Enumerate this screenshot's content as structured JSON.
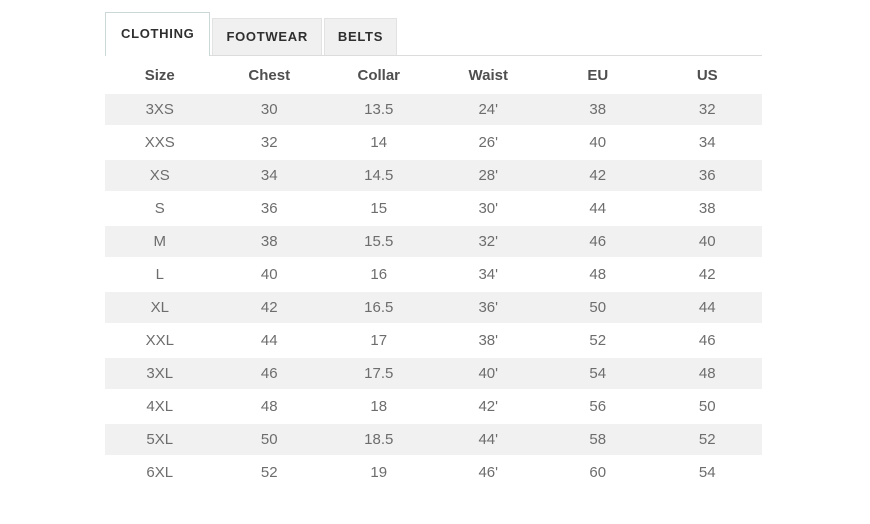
{
  "tabs": [
    {
      "label": "CLOTHING",
      "active": true
    },
    {
      "label": "FOOTWEAR",
      "active": false
    },
    {
      "label": "BELTS",
      "active": false
    }
  ],
  "table": {
    "columns": [
      "Size",
      "Chest",
      "Collar",
      "Waist",
      "EU",
      "US"
    ],
    "rows": [
      [
        "3XS",
        "30",
        "13.5",
        "24'",
        "38",
        "32"
      ],
      [
        "XXS",
        "32",
        "14",
        "26'",
        "40",
        "34"
      ],
      [
        "XS",
        "34",
        "14.5",
        "28'",
        "42",
        "36"
      ],
      [
        "S",
        "36",
        "15",
        "30'",
        "44",
        "38"
      ],
      [
        "M",
        "38",
        "15.5",
        "32'",
        "46",
        "40"
      ],
      [
        "L",
        "40",
        "16",
        "34'",
        "48",
        "42"
      ],
      [
        "XL",
        "42",
        "16.5",
        "36'",
        "50",
        "44"
      ],
      [
        "XXL",
        "44",
        "17",
        "38'",
        "52",
        "46"
      ],
      [
        "3XL",
        "46",
        "17.5",
        "40'",
        "54",
        "48"
      ],
      [
        "4XL",
        "48",
        "18",
        "42'",
        "56",
        "50"
      ],
      [
        "5XL",
        "50",
        "18.5",
        "44'",
        "58",
        "52"
      ],
      [
        "6XL",
        "52",
        "19",
        "46'",
        "60",
        "54"
      ]
    ]
  },
  "colors": {
    "stripe": "#f1f1f1",
    "tab_inactive_bg": "#f0f0f0",
    "tab_border": "#dcdcdc",
    "active_tab_border": "#ccd8d8",
    "header_text": "#4f4f4f",
    "cell_text": "#6d6d6d",
    "tab_text": "#2f2f2f"
  }
}
